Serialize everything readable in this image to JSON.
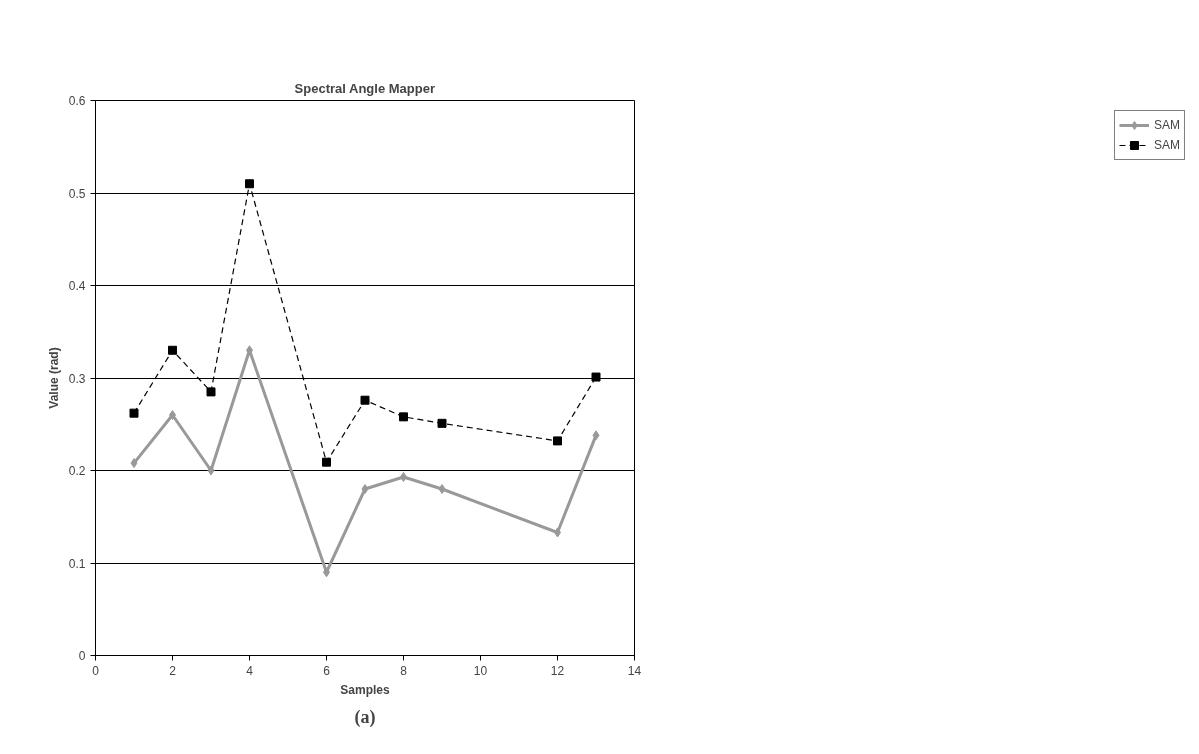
{
  "chart_data": {
    "type": "line",
    "title": "Spectral Angle Mapper",
    "xlabel": "Samples",
    "ylabel": "Value (rad)",
    "annotations": [
      "(a)"
    ],
    "xlim": [
      0,
      14
    ],
    "xticks": [
      0,
      2,
      4,
      6,
      8,
      10,
      12,
      14
    ],
    "ylim": [
      0,
      0.6
    ],
    "yticks": [
      0,
      0.1,
      0.2,
      0.3,
      0.4,
      0.5,
      0.6
    ],
    "grid": "y",
    "legend": "right",
    "series": [
      {
        "name": "SAM",
        "color": "#999999",
        "marker": "diamond",
        "line_style": "solid",
        "x": [
          1,
          2,
          3,
          4,
          6,
          7,
          8,
          9,
          12,
          13
        ],
        "values": [
          0.208,
          0.26,
          0.2,
          0.33,
          0.09,
          0.18,
          0.193,
          0.18,
          0.133,
          0.238
        ]
      },
      {
        "name": "SAM",
        "color": "#000000",
        "marker": "square",
        "line_style": "dashed",
        "x": [
          1,
          2,
          3,
          4,
          6,
          7,
          8,
          9,
          12,
          13
        ],
        "values": [
          0.262,
          0.33,
          0.285,
          0.51,
          0.209,
          0.276,
          0.258,
          0.251,
          0.232,
          0.301
        ]
      }
    ]
  }
}
